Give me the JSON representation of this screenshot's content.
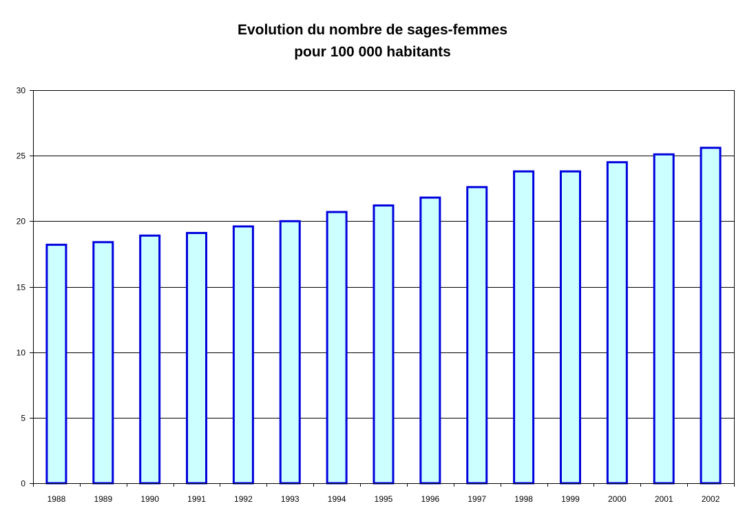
{
  "chart_data": {
    "type": "bar",
    "title_lines": [
      "Evolution du nombre de sages-femmes",
      "pour 100 000 habitants"
    ],
    "categories": [
      "1988",
      "1989",
      "1990",
      "1991",
      "1992",
      "1993",
      "1994",
      "1995",
      "1996",
      "1997",
      "1998",
      "1999",
      "2000",
      "2001",
      "2002"
    ],
    "values": [
      18.2,
      18.4,
      18.9,
      19.1,
      19.6,
      20.0,
      20.7,
      21.2,
      21.8,
      22.6,
      23.8,
      23.8,
      24.5,
      25.1,
      25.6
    ],
    "ylim": [
      0,
      30
    ],
    "yticks": [
      0,
      5,
      10,
      15,
      20,
      25,
      30
    ],
    "grid": true,
    "legend": "none",
    "colors": {
      "bar_fill": "#CCFFFF",
      "bar_stroke": "#0000DD",
      "gridline": "#000000"
    }
  }
}
